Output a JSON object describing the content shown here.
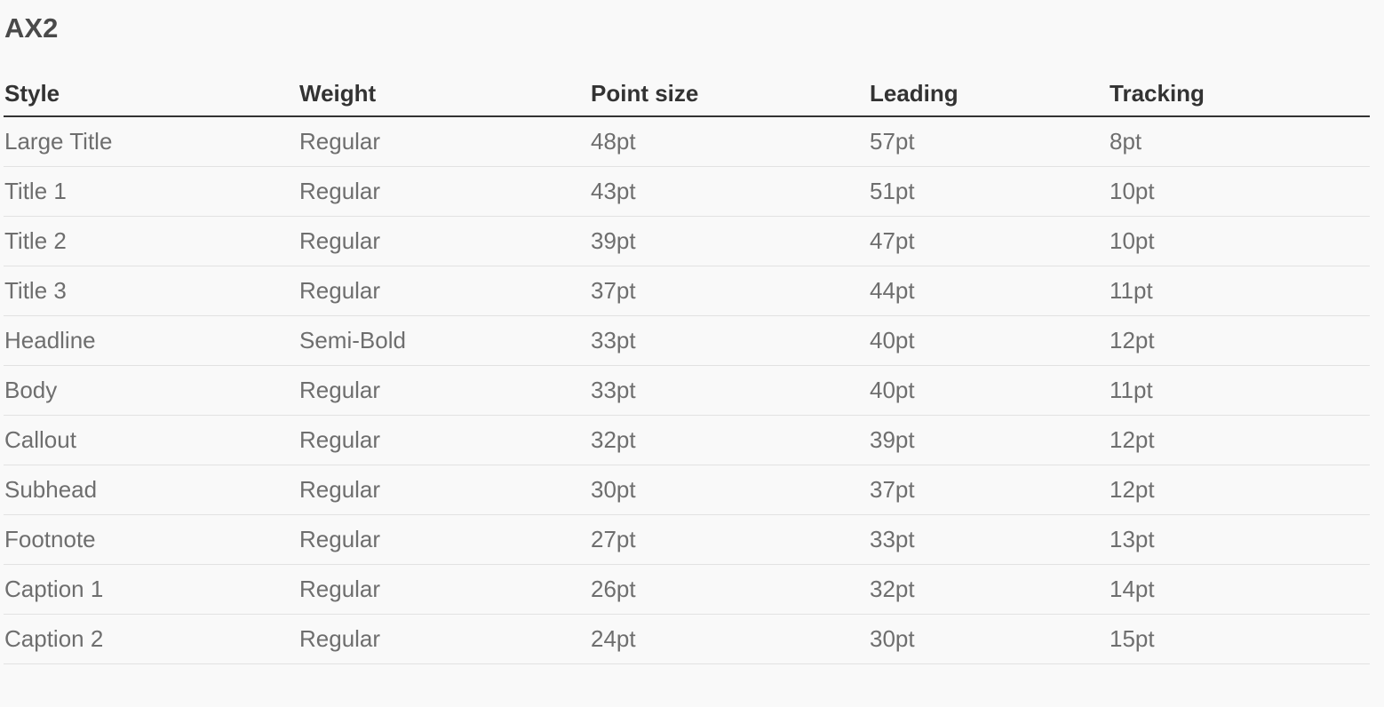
{
  "title": "AX2",
  "table": {
    "headers": [
      "Style",
      "Weight",
      "Point size",
      "Leading",
      "Tracking"
    ],
    "rows": [
      [
        "Large Title",
        "Regular",
        "48pt",
        "57pt",
        "8pt"
      ],
      [
        "Title 1",
        "Regular",
        "43pt",
        "51pt",
        "10pt"
      ],
      [
        "Title 2",
        "Regular",
        "39pt",
        "47pt",
        "10pt"
      ],
      [
        "Title 3",
        "Regular",
        "37pt",
        "44pt",
        "11pt"
      ],
      [
        "Headline",
        "Semi-Bold",
        "33pt",
        "40pt",
        "12pt"
      ],
      [
        "Body",
        "Regular",
        "33pt",
        "40pt",
        "11pt"
      ],
      [
        "Callout",
        "Regular",
        "32pt",
        "39pt",
        "12pt"
      ],
      [
        "Subhead",
        "Regular",
        "30pt",
        "37pt",
        "12pt"
      ],
      [
        "Footnote",
        "Regular",
        "27pt",
        "33pt",
        "13pt"
      ],
      [
        "Caption 1",
        "Regular",
        "26pt",
        "32pt",
        "14pt"
      ],
      [
        "Caption 2",
        "Regular",
        "24pt",
        "30pt",
        "15pt"
      ]
    ]
  },
  "colors": {
    "background": "#f9f9f9",
    "header_text": "#333333",
    "cell_text": "#6e6e6e",
    "row_divider": "#e2e2e2"
  }
}
